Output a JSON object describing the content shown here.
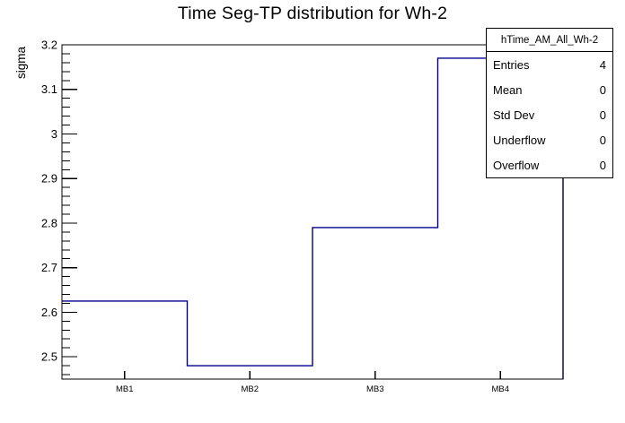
{
  "title": "Time Seg-TP distribution for Wh-2",
  "y_axis": {
    "label": "sigma"
  },
  "x_axis": {
    "tick_labels": [
      "MB1",
      "MB2",
      "MB3",
      "MB4"
    ]
  },
  "stats_box": {
    "header": "hTime_AM_All_Wh-2",
    "rows": [
      {
        "label": "Entries",
        "value": "4"
      },
      {
        "label": "Mean",
        "value": "0"
      },
      {
        "label": "Std Dev",
        "value": "0"
      },
      {
        "label": "Underflow",
        "value": "0"
      },
      {
        "label": "Overflow",
        "value": "0"
      }
    ]
  },
  "chart_data": {
    "type": "line",
    "style": "step-histogram",
    "title": "Time Seg-TP distribution for Wh-2",
    "xlabel": "",
    "ylabel": "sigma",
    "categories": [
      "MB1",
      "MB2",
      "MB3",
      "MB4"
    ],
    "values": [
      2.625,
      2.48,
      2.79,
      3.17
    ],
    "ylim": [
      2.45,
      3.2
    ],
    "y_major_ticks": [
      2.5,
      2.6,
      2.7,
      2.8,
      2.9,
      3.0,
      3.1,
      3.2
    ],
    "y_minor_step": 0.02,
    "grid": false,
    "legend_position": "none",
    "line_color": "#00008c",
    "stats": {
      "entries": 4,
      "mean": 0,
      "std_dev": 0,
      "underflow": 0,
      "overflow": 0
    }
  },
  "colors": {
    "background": "#ffffff",
    "axis": "#000000",
    "histogram_line": "#00008c"
  }
}
